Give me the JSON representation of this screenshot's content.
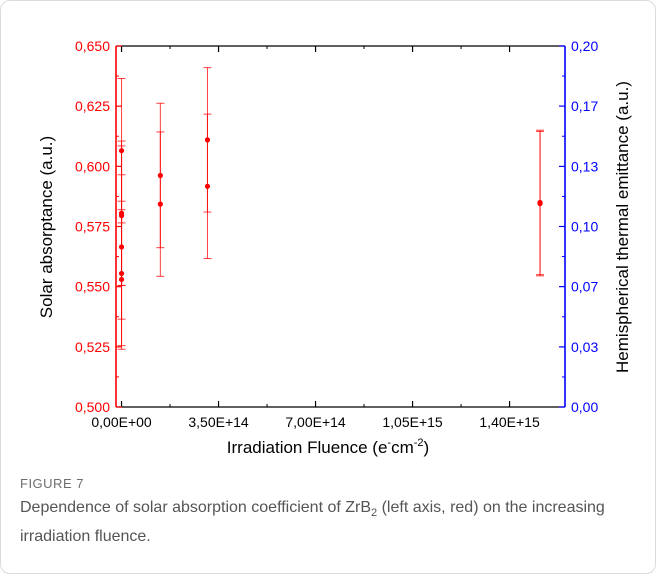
{
  "figure": {
    "label": "FIGURE 7",
    "caption_pre": "Dependence of solar absorption coefficient of ZrB",
    "caption_sub": "2",
    "caption_post": " (left axis, red) on the increasing irradiation fluence."
  },
  "chart_data": {
    "type": "scatter",
    "xlabel_main": "Irradiation Fluence (e",
    "xlabel_sup1": "-",
    "xlabel_mid": "cm",
    "xlabel_sup2": "-2",
    "xlabel_end": ")",
    "ylabel_left": "Solar absorptance (a.u.)",
    "ylabel_right": "Hemispherical thermal emittance (a.u.)",
    "xlim": [
      -20000000000000,
      1600000000000000
    ],
    "ylim_left": [
      0.5,
      0.65
    ],
    "ylim_right": [
      0.0,
      0.2
    ],
    "x_ticks": [
      "0,00E+00",
      "3,50E+14",
      "7,00E+14",
      "1,05E+15",
      "1,40E+15"
    ],
    "x_tick_values": [
      0,
      350000000000000,
      700000000000000,
      1050000000000000,
      1400000000000000
    ],
    "y_left_ticks": [
      "0,500",
      "0,525",
      "0,550",
      "0,575",
      "0,600",
      "0,625",
      "0,650"
    ],
    "y_left_tick_values": [
      0.5,
      0.525,
      0.55,
      0.575,
      0.6,
      0.625,
      0.65
    ],
    "y_right_ticks": [
      "0,00",
      "0,03",
      "0,07",
      "0,10",
      "0,13",
      "0,17",
      "0,20"
    ],
    "y_right_tick_values": [
      0.0,
      0.0333,
      0.0667,
      0.1,
      0.1333,
      0.1667,
      0.2
    ],
    "colors": {
      "left_axis": "#ff0000",
      "right_axis": "#0000ff",
      "points": "#ff0000"
    },
    "grid": false,
    "series": [
      {
        "points": [
          {
            "x": 0,
            "y": 0.6065,
            "err": 0.03
          },
          {
            "x": 0,
            "y": 0.5805,
            "err": 0.03
          },
          {
            "x": 0,
            "y": 0.5795,
            "err": 0.029
          },
          {
            "x": 0,
            "y": 0.5665,
            "err": 0.03
          },
          {
            "x": 0,
            "y": 0.5555,
            "err": 0.03
          },
          {
            "x": 0,
            "y": 0.553,
            "err": 0.029
          },
          {
            "x": 140000000000000,
            "y": 0.5962,
            "err": 0.03
          },
          {
            "x": 140000000000000,
            "y": 0.5843,
            "err": 0.03
          },
          {
            "x": 310000000000000,
            "y": 0.611,
            "err": 0.03
          },
          {
            "x": 310000000000000,
            "y": 0.5917,
            "err": 0.03
          },
          {
            "x": 1510000000000000,
            "y": 0.585,
            "err": 0.03
          },
          {
            "x": 1510000000000000,
            "y": 0.5845,
            "err": 0.03
          }
        ]
      }
    ]
  }
}
